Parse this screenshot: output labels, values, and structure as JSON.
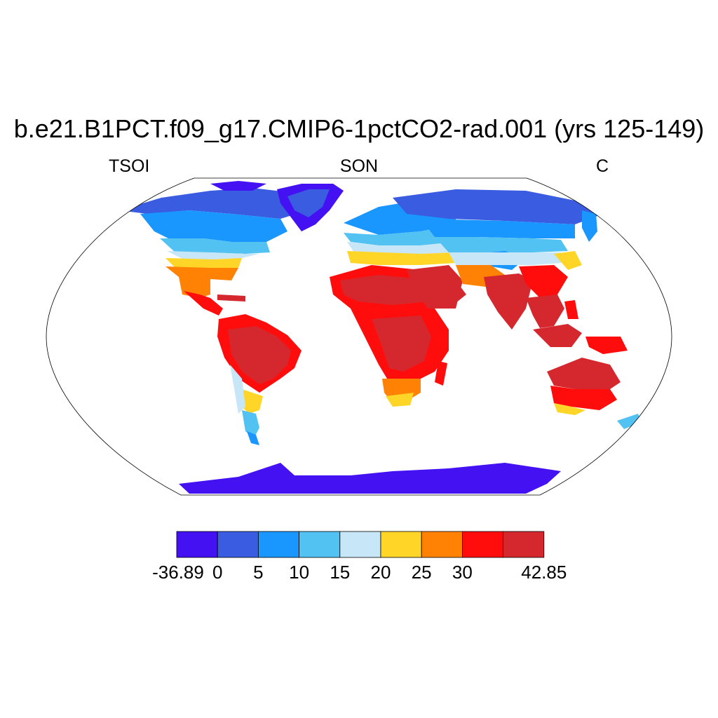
{
  "title": "b.e21.B1PCT.f09_g17.CMIP6-1pctCO2-rad.001 (yrs 125-149)",
  "left_string": "TSOI",
  "center_string": "SON",
  "right_string": "C",
  "colors": [
    "#4311f2",
    "#3a5ce0",
    "#1a96ff",
    "#52c2f2",
    "#c7e6f7",
    "#ffd528",
    "#ff8205",
    "#ff0d0d",
    "#d4282e"
  ],
  "colorbar": {
    "labels": [
      "-36.89",
      "0",
      "5",
      "10",
      "15",
      "20",
      "25",
      "30",
      "42.85"
    ],
    "levels": [
      -36.89,
      0,
      5,
      10,
      15,
      20,
      25,
      30,
      35,
      42.85
    ]
  },
  "regions": [
    {
      "name": "North America",
      "band": 1
    },
    {
      "name": "South America",
      "band": 7
    },
    {
      "name": "Africa",
      "band": 8
    },
    {
      "name": "Eurasia",
      "band": 1
    },
    {
      "name": "Australia",
      "band": 8
    },
    {
      "name": "Greenland",
      "band": 0
    },
    {
      "name": "Antarctica",
      "band": 0
    }
  ]
}
